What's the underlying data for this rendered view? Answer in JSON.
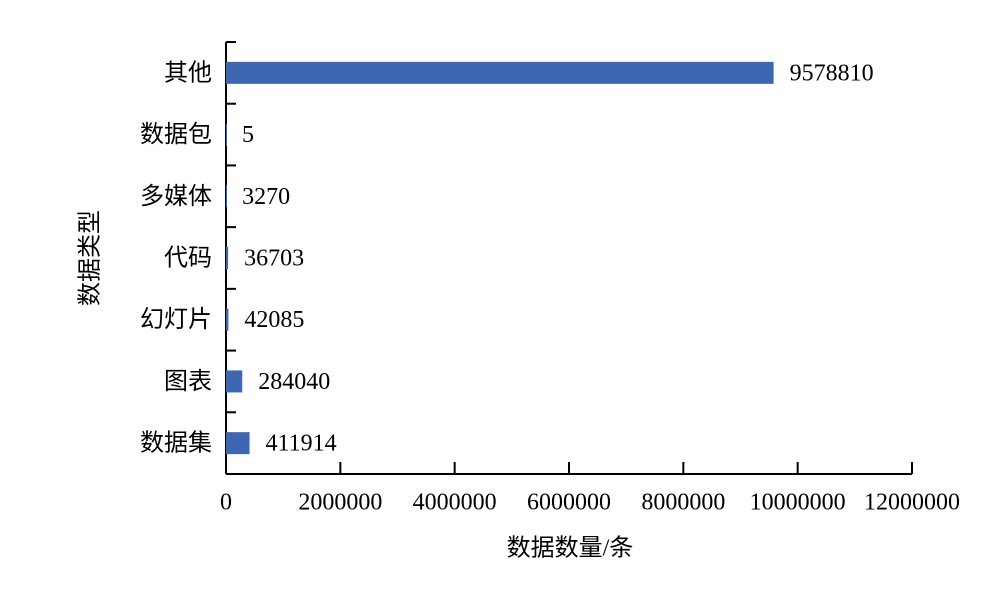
{
  "chart_data": {
    "type": "bar",
    "orientation": "horizontal",
    "categories": [
      "其他",
      "数据包",
      "多媒体",
      "代码",
      "幻灯片",
      "图表",
      "数据集"
    ],
    "values": [
      9578810,
      5,
      3270,
      36703,
      42085,
      284040,
      411914
    ],
    "color": "#3f67b1",
    "xlabel": "数据数量/条",
    "ylabel": "数据类型",
    "xlim": [
      0,
      12000000
    ],
    "xticks": [
      0,
      2000000,
      4000000,
      6000000,
      8000000,
      10000000,
      12000000
    ],
    "grid": false
  }
}
